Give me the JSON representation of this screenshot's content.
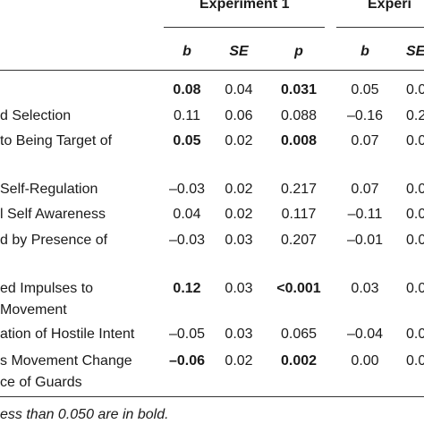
{
  "table": {
    "group_headers": [
      "Experiment 1",
      "Experi"
    ],
    "column_headers": [
      "b",
      "SE",
      "p",
      "b",
      "SE"
    ],
    "rows": [
      {
        "label": "",
        "values": [
          "0.08",
          "0.04",
          "0.031",
          "0.05",
          "0.0"
        ],
        "bold": [
          true,
          false,
          true,
          false,
          false
        ]
      },
      {
        "label": "d Selection",
        "values": [
          "0.11",
          "0.06",
          "0.088",
          "–0.16",
          "0.2"
        ],
        "bold": [
          false,
          false,
          false,
          false,
          false
        ]
      },
      {
        "label": "to Being Target of",
        "values": [
          "0.05",
          "0.02",
          "0.008",
          "0.07",
          "0.0"
        ],
        "bold": [
          true,
          false,
          true,
          false,
          false
        ]
      },
      {
        "label": "Self-Regulation",
        "values": [
          "–0.03",
          "0.02",
          "0.217",
          "0.07",
          "0.0"
        ],
        "bold": [
          false,
          false,
          false,
          false,
          false
        ]
      },
      {
        "label": "l Self Awareness",
        "values": [
          "0.04",
          "0.02",
          "0.117",
          "–0.11",
          "0.0"
        ],
        "bold": [
          false,
          false,
          false,
          false,
          false
        ]
      },
      {
        "label": "d by Presence of",
        "values": [
          "–0.03",
          "0.03",
          "0.207",
          "–0.01",
          "0.0"
        ],
        "bold": [
          false,
          false,
          false,
          false,
          false
        ]
      },
      {
        "label": "ed Impulses to",
        "label2": "Movement",
        "values": [
          "0.12",
          "0.03",
          "<0.001",
          "0.03",
          "0.0"
        ],
        "bold": [
          true,
          false,
          true,
          false,
          false
        ]
      },
      {
        "label": "ation of Hostile Intent",
        "values": [
          "–0.05",
          "0.03",
          "0.065",
          "–0.04",
          "0.0"
        ],
        "bold": [
          false,
          false,
          false,
          false,
          false
        ]
      },
      {
        "label": "s Movement Change",
        "label2": "ce of Guards",
        "values": [
          "–0.06",
          "0.02",
          "0.002",
          "0.00",
          "0.0"
        ],
        "bold": [
          true,
          false,
          true,
          false,
          false
        ]
      }
    ],
    "footnote": "ess than 0.050 are in bold."
  }
}
